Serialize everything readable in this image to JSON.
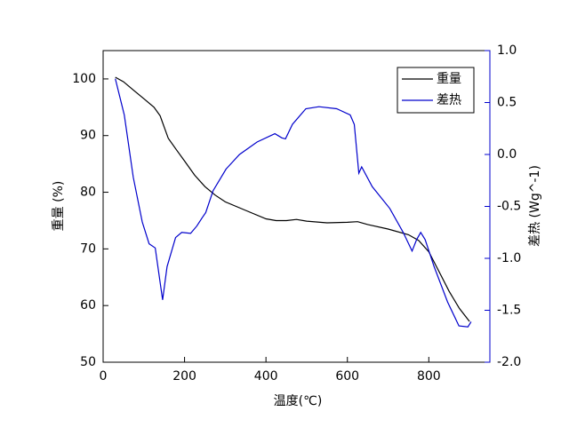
{
  "chart_data": {
    "type": "line",
    "x_label": "温度(℃)",
    "y_label": "重量 (%)",
    "y2_label": "差热 (Wg^-1)",
    "xlim": [
      0,
      950
    ],
    "xticks": [
      0,
      200,
      400,
      600,
      800
    ],
    "ylim": [
      50,
      105
    ],
    "yticks": [
      50,
      60,
      70,
      80,
      90,
      100
    ],
    "y2lim": [
      -2,
      1
    ],
    "y2ticks": [
      {
        "value": -2,
        "label": "-2.0"
      },
      -1.5,
      {
        "value": -1,
        "label": "-1.0"
      },
      -0.5,
      {
        "value": 0,
        "label": "0.0"
      },
      0.5,
      {
        "value": 1,
        "label": "1.0"
      }
    ],
    "legend": "upper right",
    "series": [
      {
        "name": "重量",
        "color": "#000000",
        "x": [
          30,
          50,
          75,
          100,
          125,
          140,
          150,
          160,
          180,
          200,
          225,
          250,
          275,
          300,
          350,
          400,
          425,
          450,
          475,
          500,
          550,
          600,
          625,
          650,
          700,
          750,
          775,
          800,
          825,
          850,
          875,
          900
        ],
        "values": [
          100.3,
          99.5,
          98,
          96.5,
          95,
          93.5,
          91.5,
          89.5,
          87.5,
          85.5,
          83,
          81,
          79.5,
          78.3,
          76.8,
          75.3,
          75,
          75,
          75.2,
          74.9,
          74.6,
          74.7,
          74.8,
          74.3,
          73.5,
          72.5,
          71.5,
          69.5,
          66,
          62.5,
          59.5,
          57.2
        ]
      },
      {
        "name": "差热",
        "color": "#0000cc",
        "axis": "y2",
        "x": [
          30,
          52,
          74,
          96,
          113,
          128,
          146,
          157,
          178,
          193,
          215,
          230,
          243,
          252,
          270,
          302,
          335,
          378,
          422,
          439,
          448,
          465,
          498,
          530,
          574,
          607,
          617,
          628,
          635,
          661,
          704,
          737,
          759,
          770,
          780,
          791,
          813,
          846,
          874,
          896,
          904
        ],
        "values": [
          0.73,
          0.38,
          -0.22,
          -0.65,
          -0.86,
          -0.9,
          -1.4,
          -1.08,
          -0.8,
          -0.75,
          -0.76,
          -0.69,
          -0.61,
          -0.56,
          -0.35,
          -0.14,
          0.0,
          0.12,
          0.2,
          0.16,
          0.15,
          0.29,
          0.44,
          0.46,
          0.44,
          0.38,
          0.29,
          -0.18,
          -0.12,
          -0.31,
          -0.52,
          -0.75,
          -0.93,
          -0.82,
          -0.75,
          -0.82,
          -1.08,
          -1.42,
          -1.65,
          -1.66,
          -1.61
        ]
      }
    ]
  }
}
